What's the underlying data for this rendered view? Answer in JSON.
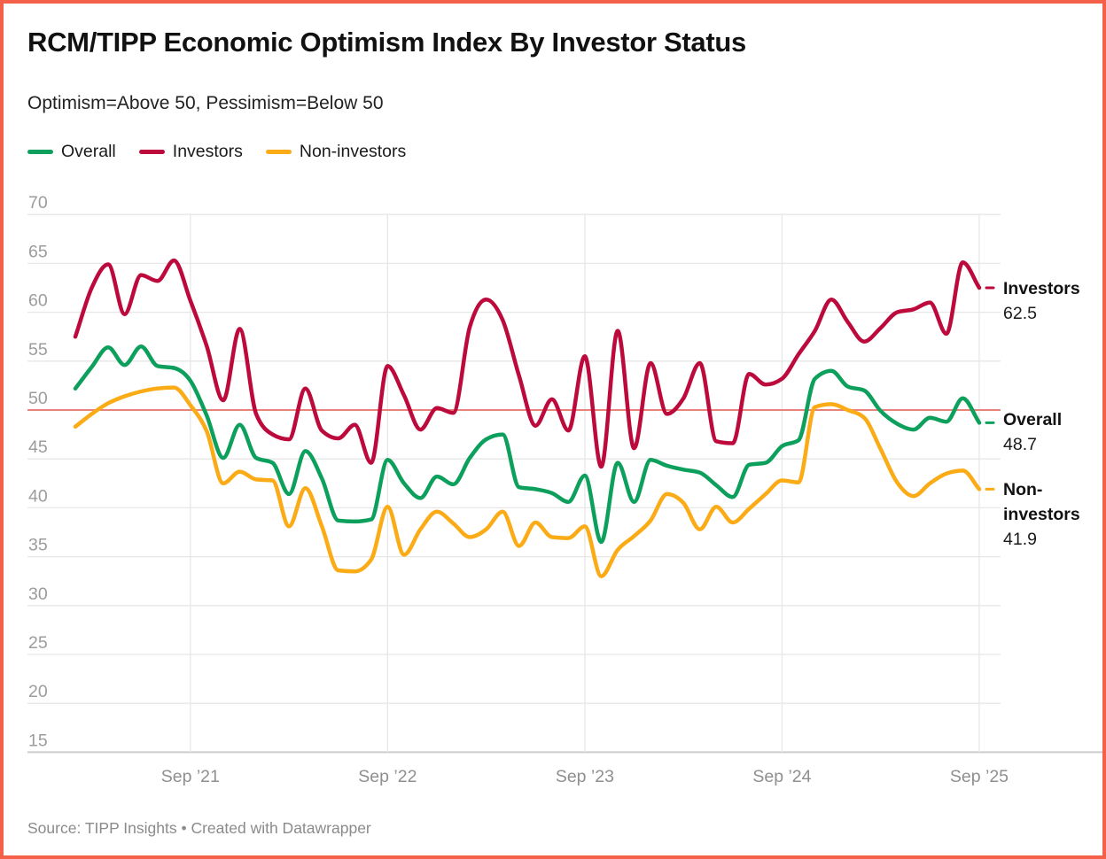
{
  "header": {
    "title": "RCM/TIPP Economic Optimism Index By Investor Status",
    "subtitle": "Optimism=Above 50, Pessimism=Below 50"
  },
  "legend": [
    {
      "label": "Overall",
      "color": "#0da05c"
    },
    {
      "label": "Investors",
      "color": "#bd0a3d"
    },
    {
      "label": "Non-investors",
      "color": "#faab16"
    }
  ],
  "colors": {
    "accent_border": "#f4604a",
    "reference_line": "#e8837a",
    "gridline": "#e7e7e7",
    "axis_line": "#cccccc",
    "tick_label": "#9c9c9c",
    "x_label": "#8f8f8f"
  },
  "chart_data": {
    "type": "line",
    "title": "RCM/TIPP Economic Optimism Index By Investor Status",
    "subtitle": "Optimism=Above 50, Pessimism=Below 50",
    "x_unit": "month",
    "x_start": "2021-02",
    "x_end": "2025-09",
    "x_tick_labels": [
      "Sep ’21",
      "Sep ’22",
      "Sep ’23",
      "Sep ’24",
      "Sep ’25"
    ],
    "x_tick_month_index": [
      7,
      19,
      31,
      43,
      55
    ],
    "ylim": [
      15,
      70
    ],
    "y_ticks": [
      15,
      20,
      25,
      30,
      35,
      40,
      45,
      50,
      55,
      60,
      65,
      70
    ],
    "grid": true,
    "legend_position": "top-left",
    "reference_line": 50,
    "series": [
      {
        "name": "Overall",
        "color": "#0da05c",
        "end_label": "Overall",
        "end_value": "48.7",
        "values": [
          52.2,
          54.4,
          56.4,
          54.6,
          56.5,
          54.5,
          54.3,
          53.0,
          49.4,
          45.1,
          48.5,
          45.1,
          44.6,
          41.4,
          45.8,
          43.0,
          38.7,
          38.6,
          38.8,
          44.9,
          42.5,
          41.0,
          43.2,
          42.4,
          45.1,
          47.0,
          47.5,
          42.1,
          41.9,
          41.5,
          40.6,
          43.3,
          36.5,
          44.6,
          40.6,
          44.9,
          44.3,
          43.9,
          43.6,
          42.3,
          41.1,
          44.4,
          44.6,
          46.3,
          46.9,
          53.2,
          54.0,
          52.4,
          52.0,
          49.9,
          48.6,
          48.0,
          49.2,
          48.8,
          51.2,
          48.7
        ]
      },
      {
        "name": "Investors",
        "color": "#bd0a3d",
        "end_label": "Investors",
        "end_value": "62.5",
        "values": [
          57.5,
          62.5,
          64.9,
          59.8,
          63.8,
          63.2,
          65.3,
          61.2,
          56.5,
          51.0,
          58.3,
          49.6,
          47.5,
          47.0,
          52.2,
          47.9,
          47.1,
          48.5,
          44.6,
          54.5,
          51.5,
          48.0,
          50.2,
          49.7,
          58.5,
          61.3,
          59.2,
          53.5,
          48.4,
          51.1,
          47.9,
          55.5,
          44.2,
          58.1,
          46.1,
          54.8,
          49.6,
          51.2,
          54.8,
          46.8,
          46.6,
          53.7,
          52.6,
          53.2,
          55.7,
          58.1,
          61.3,
          59.0,
          57.0,
          58.4,
          60.0,
          60.3,
          61.0,
          57.8,
          65.1,
          62.5
        ]
      },
      {
        "name": "Non-investors",
        "color": "#faab16",
        "end_label": "Non-investors",
        "end_value": "41.9",
        "values": [
          48.3,
          49.6,
          50.7,
          51.4,
          51.9,
          52.2,
          52.3,
          50.5,
          47.8,
          42.5,
          43.7,
          42.9,
          42.8,
          38.1,
          42.0,
          38.1,
          33.6,
          33.5,
          34.7,
          40.1,
          35.2,
          37.8,
          39.6,
          38.4,
          37.0,
          37.8,
          39.6,
          36.1,
          38.5,
          37.0,
          36.9,
          38.1,
          33.0,
          35.7,
          37.1,
          38.7,
          41.4,
          40.5,
          37.8,
          40.1,
          38.5,
          39.9,
          41.4,
          42.8,
          42.6,
          50.3,
          50.6,
          50.0,
          49.2,
          46.0,
          42.6,
          41.2,
          42.5,
          43.5,
          43.8,
          41.9
        ]
      }
    ]
  },
  "annotations": {
    "investors": {
      "label": "Investors",
      "value": "62.5"
    },
    "overall": {
      "label": "Overall",
      "value": "48.7"
    },
    "non_investors": {
      "label": "Non-investors",
      "value": "41.9"
    }
  },
  "footer": {
    "source": "Source: TIPP Insights • Created with Datawrapper"
  }
}
